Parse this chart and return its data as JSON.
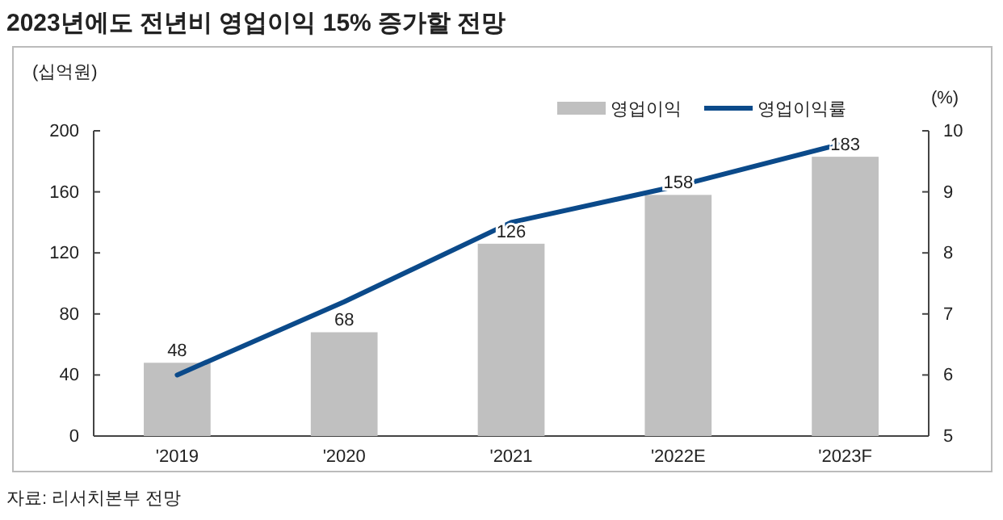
{
  "chart_data": {
    "type": "bar",
    "title": "2023년에도 전년비 영업이익 15% 증가할 전망",
    "ylabel": "(십억원)",
    "y2label": "(%)",
    "categories": [
      "'2019",
      "'2020",
      "'2021",
      "'2022E",
      "'2023F"
    ],
    "series": [
      {
        "name": "영업이익",
        "color": "#c0c0c0",
        "values": [
          48,
          68,
          126,
          158,
          183
        ],
        "value_labels": [
          "48",
          "68",
          "126",
          "158",
          "183"
        ]
      },
      {
        "name": "영업이익률",
        "type": "line",
        "axis": "y2",
        "color": "#0b4a8a",
        "values": [
          6.0,
          7.2,
          8.5,
          9.1,
          9.8
        ]
      }
    ],
    "ylim": [
      0,
      200
    ],
    "yticks": [
      0,
      40,
      80,
      120,
      160,
      200
    ],
    "y2lim": [
      5,
      10
    ],
    "y2ticks": [
      5,
      6,
      7,
      8,
      9,
      10
    ],
    "legend": "top right",
    "grid": false,
    "marker": "none",
    "line_style": "solid",
    "annotations": [
      "자료: 리서치본부 전망"
    ]
  }
}
